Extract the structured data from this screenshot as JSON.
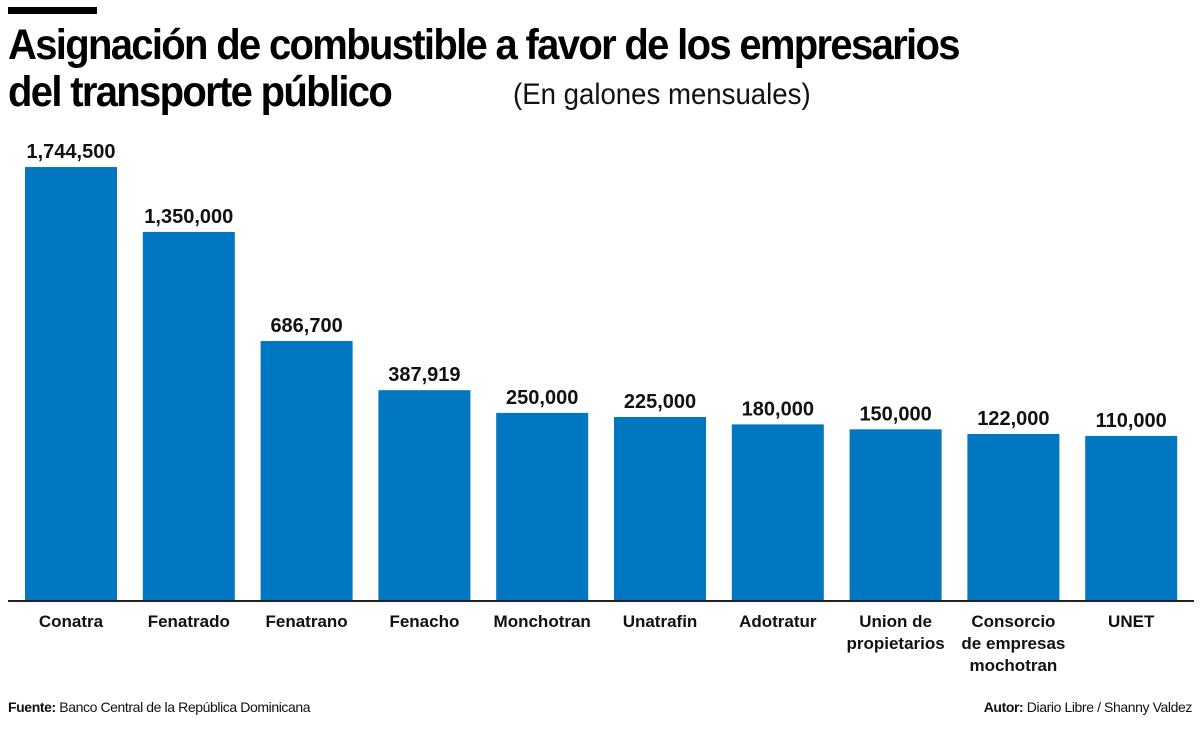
{
  "chart_data": {
    "type": "bar",
    "title": "Asignación de combustible a favor de los empresarios del transporte público",
    "title_lines": [
      "Asignación de combustible a favor de los empresarios",
      "del transporte público"
    ],
    "subtitle": "(En galones mensuales)",
    "categories": [
      "Conatra",
      "Fenatrado",
      "Fenatrano",
      "Fenacho",
      "Monchotran",
      "Unatrafin",
      "Adotratur",
      "Union de propietarios",
      "Consorcio de empresas mochotran",
      "UNET"
    ],
    "category_lines": [
      [
        "Conatra"
      ],
      [
        "Fenatrado"
      ],
      [
        "Fenatrano"
      ],
      [
        "Fenacho"
      ],
      [
        "Monchotran"
      ],
      [
        "Unatrafin"
      ],
      [
        "Adotratur"
      ],
      [
        "Union de",
        "propietarios"
      ],
      [
        "Consorcio",
        "de empresas",
        "mochotran"
      ],
      [
        "UNET"
      ]
    ],
    "values": [
      1744500,
      1350000,
      686700,
      387919,
      250000,
      225000,
      180000,
      150000,
      122000,
      110000
    ],
    "value_labels": [
      "1,744,500",
      "1,350,000",
      "686,700",
      "387,919",
      "250,000",
      "225,000",
      "180,000",
      "150,000",
      "122,000",
      "110,000"
    ],
    "xlabel": "",
    "ylabel": "",
    "grid": false,
    "legend": "none",
    "bar_color": "#0077C0"
  },
  "footer": {
    "source_label": "Fuente:",
    "source_text": "Banco Central de la República Dominicana",
    "author_label": "Autor:",
    "author_text": "Diario Libre / Shanny Valdez"
  }
}
